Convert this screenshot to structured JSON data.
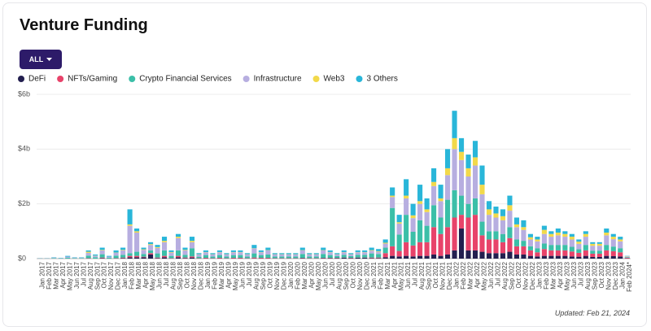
{
  "header": {
    "title": "Venture Funding",
    "filter": "ALL"
  },
  "footer": {
    "updated": "Updated: Feb 21, 2024"
  },
  "chart_data": {
    "type": "stacked_bar",
    "categories": [
      "Jan 2017",
      "Feb 2017",
      "Mar 2017",
      "Apr 2017",
      "May 2017",
      "Jun 2017",
      "Jul 2017",
      "Aug 2017",
      "Sep 2017",
      "Oct 2017",
      "Nov 2017",
      "Dec 2017",
      "Jan 2018",
      "Feb 2018",
      "Mar 2018",
      "Apr 2018",
      "May 2018",
      "Jun 2018",
      "Jul 2018",
      "Aug 2018",
      "Sep 2018",
      "Oct 2018",
      "Nov 2018",
      "Dec 2018",
      "Jan 2019",
      "Feb 2019",
      "Mar 2019",
      "Apr 2019",
      "May 2019",
      "Jun 2019",
      "Jul 2019",
      "Aug 2019",
      "Sep 2019",
      "Oct 2019",
      "Nov 2019",
      "Dec 2019",
      "Jan 2020",
      "Feb 2020",
      "Mar 2020",
      "Apr 2020",
      "May 2020",
      "Jun 2020",
      "Jul 2020",
      "Aug 2020",
      "Sep 2020",
      "Oct 2020",
      "Nov 2020",
      "Dec 2020",
      "Jan 2021",
      "Feb 2021",
      "Mar 2021",
      "Apr 2021",
      "May 2021",
      "Jun 2021",
      "Jul 2021",
      "Aug 2021",
      "Sep 2021",
      "Oct 2021",
      "Nov 2021",
      "Dec 2021",
      "Jan 2022",
      "Feb 2022",
      "Mar 2022",
      "Apr 2022",
      "May 2022",
      "Jun 2022",
      "Jul 2022",
      "Aug 2022",
      "Sep 2022",
      "Oct 2022",
      "Nov 2022",
      "Dec 2022",
      "Jan 2023",
      "Feb 2023",
      "Mar 2023",
      "Apr 2023",
      "May 2023",
      "Jun 2023",
      "Jul 2023",
      "Aug 2023",
      "Sep 2023",
      "Oct 2023",
      "Nov 2023",
      "Dec 2023",
      "Jan 2024",
      "Feb 2024*"
    ],
    "series": [
      {
        "name": "DeFi",
        "color": "#231f4f",
        "values": [
          0,
          0,
          0,
          0,
          0,
          0,
          0,
          0.01,
          0,
          0.02,
          0,
          0.01,
          0.02,
          0.05,
          0.05,
          0.05,
          0.15,
          0.02,
          0.05,
          0.01,
          0.05,
          0.02,
          0.04,
          0.01,
          0.01,
          0.01,
          0.01,
          0.01,
          0.01,
          0.01,
          0.01,
          0.01,
          0.01,
          0.01,
          0.01,
          0.01,
          0.01,
          0.01,
          0.02,
          0.01,
          0.01,
          0.02,
          0.02,
          0.02,
          0.03,
          0.02,
          0.03,
          0.03,
          0.02,
          0.02,
          0.05,
          0.1,
          0.08,
          0.1,
          0.08,
          0.1,
          0.1,
          0.15,
          0.1,
          0.15,
          0.3,
          1.1,
          0.3,
          0.3,
          0.25,
          0.2,
          0.2,
          0.2,
          0.25,
          0.15,
          0.15,
          0.1,
          0.08,
          0.1,
          0.1,
          0.1,
          0.1,
          0.08,
          0.07,
          0.1,
          0.06,
          0.06,
          0.1,
          0.09,
          0.08,
          0.01
        ]
      },
      {
        "name": "NFTs/Gaming",
        "color": "#e8436a",
        "values": [
          0,
          0,
          0,
          0,
          0,
          0,
          0,
          0.01,
          0,
          0.02,
          0,
          0.01,
          0.02,
          0.05,
          0.05,
          0.02,
          0.05,
          0.02,
          0.05,
          0.01,
          0.05,
          0.02,
          0.04,
          0.01,
          0.02,
          0.01,
          0.02,
          0.01,
          0.02,
          0.02,
          0.01,
          0.03,
          0.02,
          0.02,
          0.01,
          0.01,
          0.01,
          0.01,
          0.01,
          0.01,
          0.01,
          0.01,
          0.01,
          0.01,
          0.01,
          0.01,
          0.01,
          0.01,
          0.02,
          0.02,
          0.15,
          0.35,
          0.2,
          0.5,
          0.4,
          0.5,
          0.5,
          1.0,
          0.8,
          1.0,
          1.2,
          0.5,
          1.2,
          1.3,
          0.6,
          0.5,
          0.5,
          0.4,
          0.5,
          0.3,
          0.3,
          0.2,
          0.15,
          0.25,
          0.2,
          0.2,
          0.2,
          0.18,
          0.14,
          0.2,
          0.12,
          0.12,
          0.2,
          0.18,
          0.15,
          0.02
        ]
      },
      {
        "name": "Crypto Financial Services",
        "color": "#3bbfa8",
        "values": [
          0.01,
          0.01,
          0.02,
          0.01,
          0.03,
          0.02,
          0.02,
          0.09,
          0.05,
          0.12,
          0.03,
          0.09,
          0.1,
          0.1,
          0.15,
          0.1,
          0.1,
          0.15,
          0.2,
          0.08,
          0.2,
          0.1,
          0.3,
          0.05,
          0.1,
          0.06,
          0.1,
          0.06,
          0.1,
          0.1,
          0.06,
          0.15,
          0.1,
          0.12,
          0.06,
          0.06,
          0.06,
          0.06,
          0.14,
          0.06,
          0.06,
          0.14,
          0.1,
          0.06,
          0.1,
          0.06,
          0.1,
          0.1,
          0.15,
          0.13,
          0.2,
          1.4,
          0.6,
          1.0,
          0.5,
          0.8,
          0.6,
          0.8,
          0.6,
          1.0,
          1.0,
          0.7,
          0.5,
          0.6,
          0.5,
          0.3,
          0.3,
          0.3,
          0.4,
          0.25,
          0.2,
          0.15,
          0.15,
          0.2,
          0.2,
          0.2,
          0.2,
          0.17,
          0.13,
          0.2,
          0.11,
          0.11,
          0.2,
          0.17,
          0.15,
          0.02
        ]
      },
      {
        "name": "Infrastructure",
        "color": "#b7aee0",
        "values": [
          0.01,
          0.01,
          0.02,
          0.01,
          0.04,
          0.02,
          0.02,
          0.1,
          0.05,
          0.14,
          0.04,
          0.1,
          0.16,
          1.0,
          0.7,
          0.15,
          0.2,
          0.2,
          0.3,
          0.12,
          0.45,
          0.16,
          0.22,
          0.08,
          0.1,
          0.07,
          0.1,
          0.07,
          0.1,
          0.1,
          0.07,
          0.18,
          0.1,
          0.15,
          0.07,
          0.07,
          0.07,
          0.07,
          0.13,
          0.07,
          0.07,
          0.13,
          0.1,
          0.06,
          0.09,
          0.06,
          0.09,
          0.09,
          0.1,
          0.08,
          0.15,
          0.4,
          0.4,
          0.6,
          0.5,
          0.6,
          0.5,
          0.7,
          0.6,
          0.9,
          1.5,
          1.3,
          1.0,
          1.2,
          1.0,
          0.6,
          0.5,
          0.5,
          0.6,
          0.45,
          0.4,
          0.25,
          0.25,
          0.35,
          0.3,
          0.35,
          0.3,
          0.27,
          0.2,
          0.3,
          0.18,
          0.18,
          0.35,
          0.27,
          0.25,
          0.03
        ]
      },
      {
        "name": "Web3",
        "color": "#f2d94a",
        "values": [
          0,
          0,
          0,
          0,
          0,
          0,
          0,
          0.04,
          0.01,
          0.02,
          0,
          0.01,
          0.02,
          0.05,
          0.05,
          0.02,
          0.03,
          0.03,
          0.05,
          0.02,
          0.05,
          0.02,
          0.05,
          0.01,
          0.01,
          0.01,
          0.01,
          0.01,
          0.01,
          0.01,
          0.01,
          0.01,
          0.01,
          0.01,
          0.01,
          0.01,
          0.01,
          0.01,
          0.01,
          0.01,
          0.01,
          0.01,
          0.01,
          0.01,
          0.01,
          0.01,
          0.01,
          0.01,
          0.02,
          0.02,
          0.03,
          0.05,
          0.05,
          0.1,
          0.1,
          0.1,
          0.1,
          0.15,
          0.1,
          0.25,
          0.4,
          0.3,
          0.3,
          0.3,
          0.35,
          0.2,
          0.15,
          0.15,
          0.2,
          0.1,
          0.1,
          0.08,
          0.07,
          0.15,
          0.1,
          0.1,
          0.1,
          0.1,
          0.08,
          0.1,
          0.07,
          0.07,
          0.1,
          0.09,
          0.07,
          0.01
        ]
      },
      {
        "name": "3 Others",
        "color": "#29b6d9",
        "values": [
          0,
          0,
          0.01,
          0.01,
          0.03,
          0.01,
          0.01,
          0.05,
          0.04,
          0.08,
          0.03,
          0.08,
          0.08,
          0.55,
          0.1,
          0.06,
          0.07,
          0.08,
          0.15,
          0.06,
          0.1,
          0.08,
          0.15,
          0.04,
          0.06,
          0.04,
          0.06,
          0.04,
          0.06,
          0.06,
          0.04,
          0.12,
          0.06,
          0.09,
          0.04,
          0.04,
          0.04,
          0.04,
          0.09,
          0.04,
          0.04,
          0.09,
          0.06,
          0.04,
          0.06,
          0.04,
          0.06,
          0.06,
          0.09,
          0.08,
          0.12,
          0.3,
          0.27,
          0.6,
          0.42,
          0.6,
          0.4,
          0.5,
          0.5,
          0.7,
          1.0,
          0.5,
          0.5,
          0.6,
          0.7,
          0.3,
          0.25,
          0.25,
          0.35,
          0.25,
          0.25,
          0.12,
          0.1,
          0.15,
          0.1,
          0.15,
          0.1,
          0.1,
          0.08,
          0.1,
          0.06,
          0.06,
          0.15,
          0.1,
          0.1,
          0.01
        ]
      }
    ],
    "ylim": [
      0,
      6
    ],
    "yticks": [
      {
        "value": 0,
        "label": "$0"
      },
      {
        "value": 2,
        "label": "$2b"
      },
      {
        "value": 4,
        "label": "$4b"
      },
      {
        "value": 6,
        "label": "$6b"
      }
    ],
    "grid": true
  }
}
